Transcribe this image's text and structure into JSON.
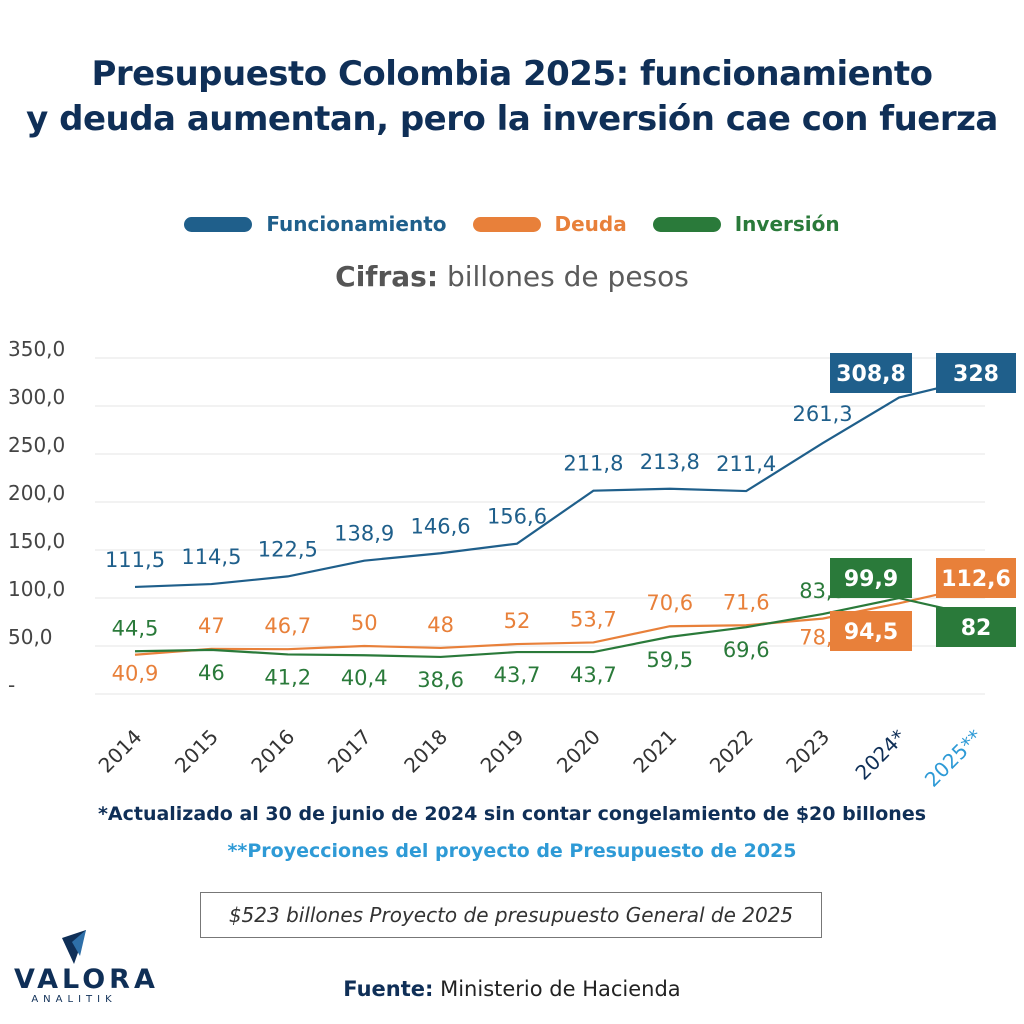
{
  "title_line1": "Presupuesto Colombia 2025: funcionamiento",
  "title_line2": "y deuda aumentan, pero la inversión cae con fuerza",
  "units_bold": "Cifras:",
  "units_text": " billones de pesos",
  "note_2024": "*Actualizado al 30 de junio de 2024 sin contar congelamiento de $20 billones",
  "note_2025": "**Proyecciones del proyecto de Presupuesto de 2025",
  "box_text": "$523 billones Proyecto de presupuesto General de 2025",
  "source_label": "Fuente:",
  "source_text": " Ministerio de Hacienda",
  "logo_word": "VALORA",
  "logo_sub": "ANALITIK",
  "colors": {
    "funcionamiento": "#1f5f8b",
    "deuda": "#e8803a",
    "inversion": "#2a7a3a",
    "title": "#0f2f57",
    "projection": "#2e9ad6"
  },
  "chart_data": {
    "type": "line",
    "categories": [
      "2014",
      "2015",
      "2016",
      "2017",
      "2018",
      "2019",
      "2020",
      "2021",
      "2022",
      "2023",
      "2024*",
      "2025**"
    ],
    "y_ticks": [
      "350,0",
      "300,0",
      "250,0",
      "200,0",
      "150,0",
      "100,0",
      "50,0",
      "-"
    ],
    "ylim": [
      0,
      350
    ],
    "grid": true,
    "legend_position": "top-center",
    "series": [
      {
        "name": "Funcionamiento",
        "values": [
          111.5,
          114.5,
          122.5,
          138.9,
          146.6,
          156.6,
          211.8,
          213.8,
          211.4,
          261.3,
          308.8,
          328
        ],
        "labels": [
          "111,5",
          "114,5",
          "122,5",
          "138,9",
          "146,6",
          "156,6",
          "211,8",
          "213,8",
          "211,4",
          "261,3",
          "308,8",
          "328"
        ]
      },
      {
        "name": "Deuda",
        "values": [
          40.9,
          47,
          46.7,
          50,
          48,
          52,
          53.7,
          70.6,
          71.6,
          78.5,
          94.5,
          112.6
        ],
        "labels": [
          "40,9",
          "47",
          "46,7",
          "50",
          "48",
          "52",
          "53,7",
          "70,6",
          "71,6",
          "78,5",
          "94,5",
          "112,6"
        ]
      },
      {
        "name": "Inversión",
        "values": [
          44.5,
          46,
          41.2,
          40.4,
          38.6,
          43.7,
          43.7,
          59.5,
          69.6,
          83.3,
          99.9,
          82
        ],
        "labels": [
          "44,5",
          "46",
          "41,2",
          "40,4",
          "38,6",
          "43,7",
          "43,7",
          "59,5",
          "69,6",
          "83,3",
          "99,9",
          "82"
        ]
      }
    ]
  }
}
